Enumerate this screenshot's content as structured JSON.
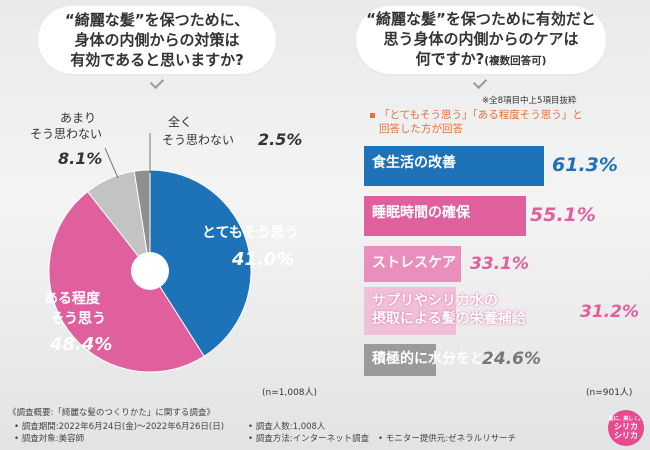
{
  "left_question": {
    "line1": "“綺麗な髪”を保つために、",
    "line2": "身体の内側からの対策は",
    "line3": "有効であると思いますか?"
  },
  "right_question": {
    "line1": "“綺麗な髪”を保つために有効だと",
    "line2": "思う身体の内側からのケアは",
    "line3_main": "何ですか?",
    "line3_small": "(複数回答可)"
  },
  "chart_data": [
    {
      "type": "pie",
      "title": "“綺麗な髪”を保つために、身体の内側からの対策は有効であると思いますか?",
      "slices": [
        {
          "label": "とてもそう思う",
          "value": 41.0,
          "value_text": "41.0%",
          "color": "#1e72b8"
        },
        {
          "label": "ある程度そう思う",
          "value": 48.4,
          "value_text": "48.4%",
          "color": "#e0609e"
        },
        {
          "label": "あまりそう思わない",
          "value": 8.1,
          "value_text": "8.1%",
          "color": "#c3c3c3"
        },
        {
          "label": "全くそう思わない",
          "value": 2.5,
          "value_text": "2.5%",
          "color": "#8f8f8f"
        }
      ],
      "n": "(n=1,008人)"
    },
    {
      "type": "bar",
      "orientation": "horizontal",
      "title": "“綺麗な髪”を保つために有効だと思う身体の内側からのケアは何ですか?(複数回答可)",
      "categories": [
        "食生活の改善",
        "睡眠時間の確保",
        "ストレスケア",
        "サプリやシリカ水の摂取による髪の栄養補給",
        "積極的に水分をとる"
      ],
      "values": [
        61.3,
        55.1,
        33.1,
        31.2,
        24.6
      ],
      "value_texts": [
        "61.3%",
        "55.1%",
        "33.1%",
        "31.2%",
        "24.6%"
      ],
      "colors": [
        "#1e72b8",
        "#e0609e",
        "#ea8fbd",
        "#f2bfd8",
        "#9a9a9a"
      ],
      "xlim": [
        0,
        61.3
      ],
      "n": "(n=901人)"
    }
  ],
  "pie_labels": {
    "s0_name": "とてもそう思う",
    "s0_val": "41.0%",
    "s1_name_l1": "ある程度",
    "s1_name_l2": "そう思う",
    "s1_val": "48.4%",
    "s2_name_l1": "あまり",
    "s2_name_l2": "そう思わない",
    "s2_val": "8.1%",
    "s3_name_l1": "全く",
    "s3_name_l2": "そう思わない",
    "s3_val": "2.5%"
  },
  "bar_labels": {
    "b0": "食生活の改善",
    "b1": "睡眠時間の確保",
    "b2": "ストレスケア",
    "b3_l1": "サプリやシリカ水の",
    "b3_l2": "摂取による髪の栄養補給",
    "b4": "積極的に水分をとる",
    "v0": "61.3%",
    "v1": "55.1%",
    "v2": "33.1%",
    "v3": "31.2%",
    "v4": "24.6%"
  },
  "notes": {
    "top": "※全8項目中上5項目抜粋",
    "orange_l1": "「とてもそう思う」「ある程度そう思う」と",
    "orange_l2": "回答した方が回答",
    "n_left": "(n=1,008人)",
    "n_right": "(n=901人)"
  },
  "footer": {
    "title": "《調査概要:「綺麗な髪のつくりかた」に関する調査》",
    "period": "• 調査期間:2022年6月24日(金)〜2022年6月26日(日)",
    "target": "• 調査対象:美容師",
    "count": "• 調査人数:1,008人",
    "method": "• 調査方法:インターネット調査",
    "monitor": "• モニター提供元:ゼネラルリサーチ"
  },
  "logo": {
    "small": "髪に、美しく。",
    "line1": "シリカ",
    "line2": "シリカ"
  }
}
